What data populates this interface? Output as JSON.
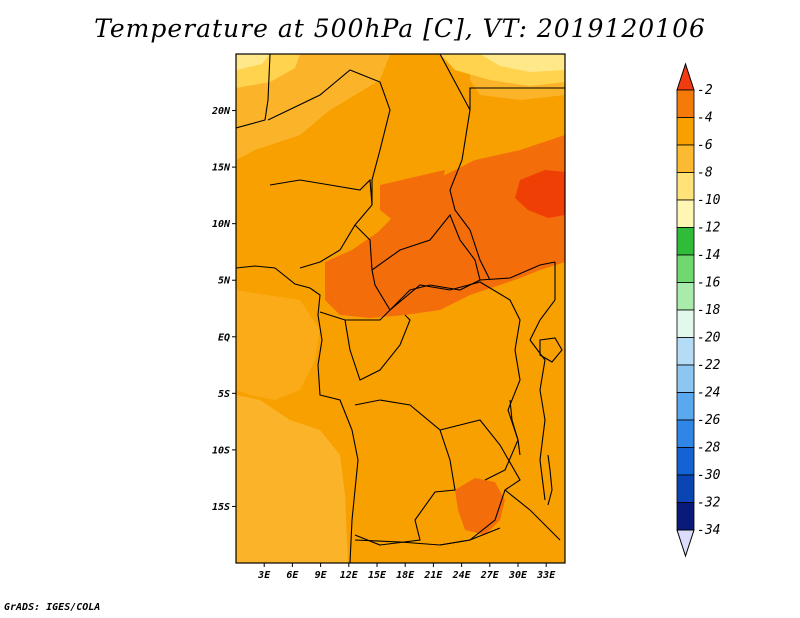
{
  "title": "Temperature at 500hPa [C], VT: 2019120106",
  "footer": "GrADS: IGES/COLA",
  "map": {
    "lon_range": [
      0,
      35
    ],
    "lat_range": [
      -20,
      25
    ],
    "lat_ticks": [
      {
        "value": 20,
        "label": "20N"
      },
      {
        "value": 15,
        "label": "15N"
      },
      {
        "value": 10,
        "label": "10N"
      },
      {
        "value": 5,
        "label": "5N"
      },
      {
        "value": 0,
        "label": "EQ"
      },
      {
        "value": -5,
        "label": "5S"
      },
      {
        "value": -10,
        "label": "10S"
      },
      {
        "value": -15,
        "label": "15S"
      }
    ],
    "lon_ticks": [
      {
        "value": 3,
        "label": "3E"
      },
      {
        "value": 6,
        "label": "6E"
      },
      {
        "value": 9,
        "label": "9E"
      },
      {
        "value": 12,
        "label": "12E"
      },
      {
        "value": 15,
        "label": "15E"
      },
      {
        "value": 18,
        "label": "18E"
      },
      {
        "value": 21,
        "label": "21E"
      },
      {
        "value": 24,
        "label": "24E"
      },
      {
        "value": 27,
        "label": "27E"
      },
      {
        "value": 30,
        "label": "30E"
      },
      {
        "value": 33,
        "label": "33E"
      }
    ],
    "colors": {
      "below_minus8": "#ffd34d",
      "minus8_to_minus6": "#fbb42a",
      "minus6_to_minus4": "#f8a000",
      "minus4_to_minus2": "#f46d0b",
      "above_minus2": "#ef3f05",
      "minus10_to_minus8": "#ffe88a",
      "borders": "#000000"
    }
  },
  "colorbar": {
    "labels": [
      "-2",
      "-4",
      "-6",
      "-8",
      "-10",
      "-12",
      "-14",
      "-16",
      "-18",
      "-20",
      "-22",
      "-24",
      "-26",
      "-28",
      "-30",
      "-32",
      "-34"
    ],
    "colors": [
      "#f03c10",
      "#f57a0a",
      "#f8a000",
      "#fcb932",
      "#ffe278",
      "#fff6b4",
      "#2fbd39",
      "#6fd970",
      "#a8ebaa",
      "#e3f8ec",
      "#b5dcf7",
      "#8ec6f2",
      "#5aa9ef",
      "#2f86e6",
      "#1463d4",
      "#0b45b3",
      "#081a7a",
      "#dcdcfc"
    ]
  }
}
